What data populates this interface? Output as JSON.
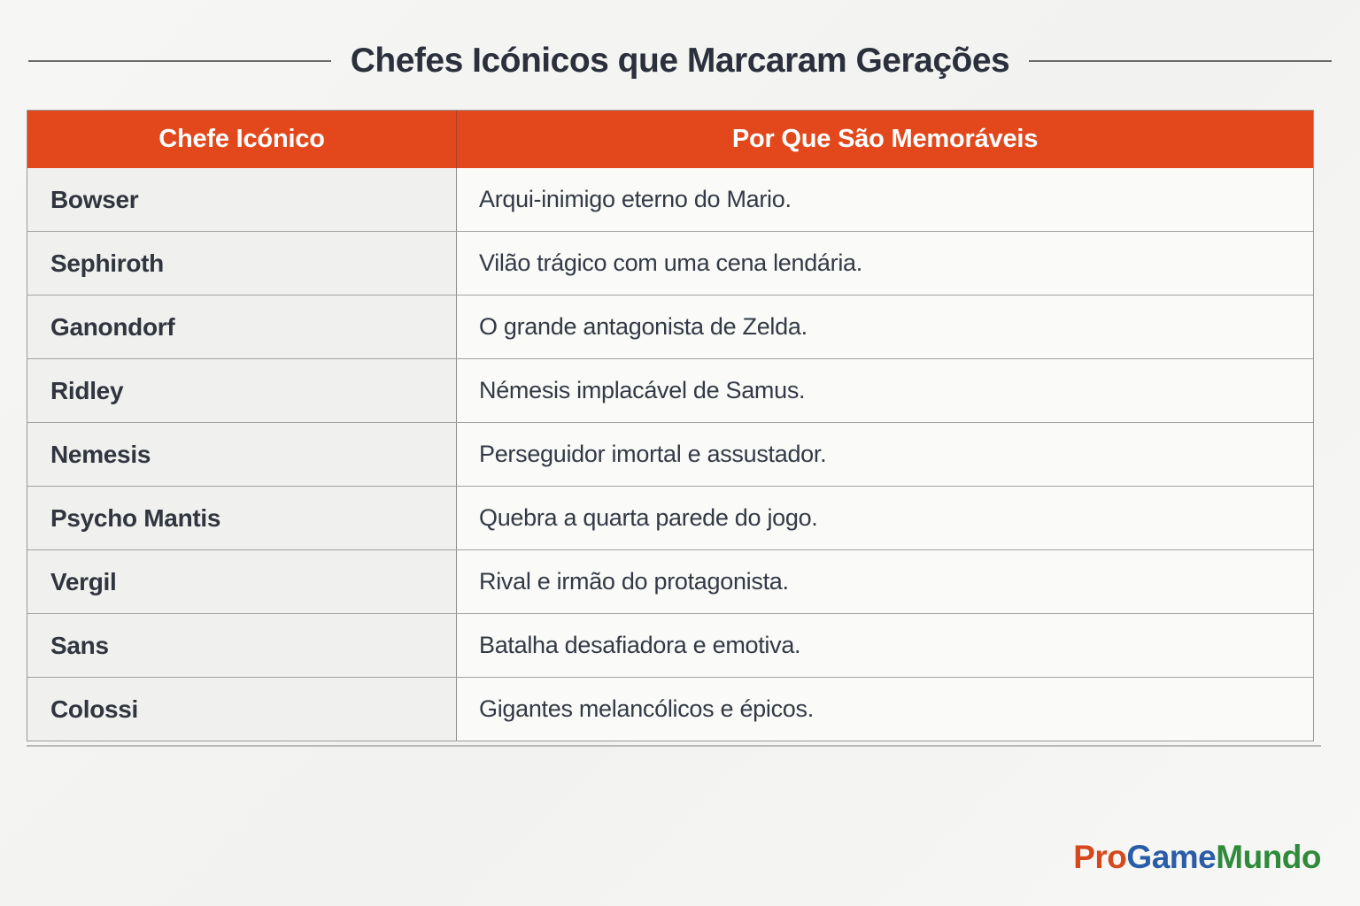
{
  "page": {
    "title": "Chefes Icónicos que Marcaram Gerações"
  },
  "table": {
    "header_bg": "#e2481c",
    "columns": [
      "Chefe Icónico",
      "Por Que São Memoráveis"
    ],
    "rows": [
      {
        "boss": "Bowser",
        "reason": "Arqui-inimigo eterno do Mario."
      },
      {
        "boss": "Sephiroth",
        "reason": "Vilão trágico com uma cena lendária."
      },
      {
        "boss": "Ganondorf",
        "reason": "O grande antagonista de Zelda."
      },
      {
        "boss": "Ridley",
        "reason": "Némesis implacável de Samus."
      },
      {
        "boss": "Nemesis",
        "reason": "Perseguidor imortal e assustador."
      },
      {
        "boss": "Psycho Mantis",
        "reason": "Quebra a quarta parede do jogo."
      },
      {
        "boss": "Vergil",
        "reason": "Rival e irmão do protagonista."
      },
      {
        "boss": "Sans",
        "reason": "Batalha desafiadora e emotiva."
      },
      {
        "boss": "Colossi",
        "reason": "Gigantes melancólicos e épicos."
      }
    ]
  },
  "brand": {
    "pro": "Pro",
    "game": "Game",
    "mundo": "Mundo",
    "colors": {
      "pro": "#d5491c",
      "game": "#2a5ca8",
      "mundo": "#2f8b3b"
    }
  }
}
